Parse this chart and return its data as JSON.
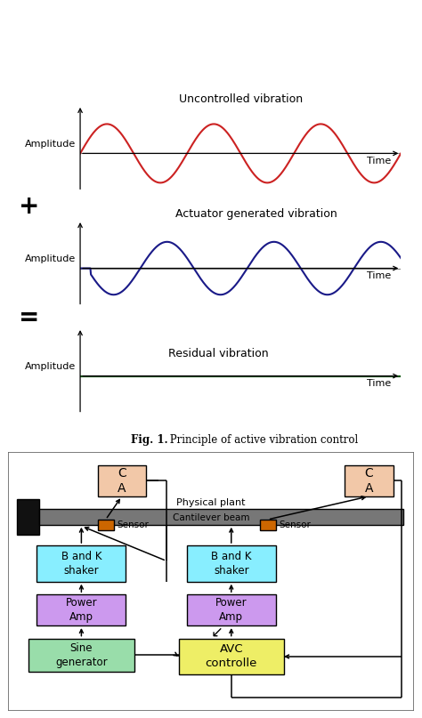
{
  "fig_caption_bold": "Fig. 1.",
  "fig_caption_rest": " Principle of active vibration control",
  "wave1_color": "#cc2222",
  "wave2_color": "#1a1a88",
  "wave3_color": "#005500",
  "axis_color": "#888888",
  "bg_color": "#ffffff",
  "symbol_plus": "+",
  "symbol_equals": "=",
  "label_amplitude": "Amplitude",
  "label_time": "Time",
  "label1": "Uncontrolled vibration",
  "label2": "Actuator generated vibration",
  "label3": "Residual vibration",
  "block_ca_color": "#f2c8a8",
  "block_bk_color": "#88eeff",
  "block_power_color": "#cc99ee",
  "block_sine_color": "#99ddaa",
  "block_avc_color": "#eeee66",
  "sensor_color": "#cc6600",
  "beam_color": "#777777",
  "wall_color": "#111111",
  "diagram_border": "#666666"
}
